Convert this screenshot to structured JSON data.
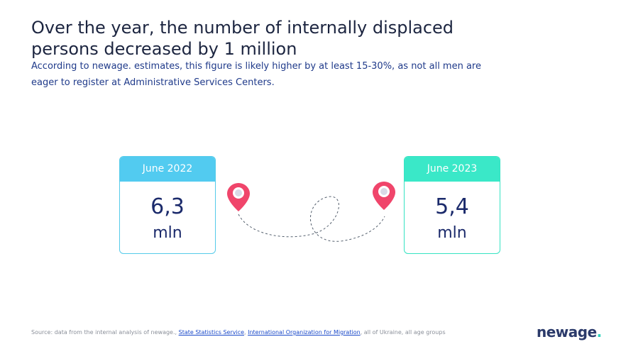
{
  "title": "Over the year, the number of internally displaced persons decreased by 1 million",
  "subtitle": "According to newage. estimates, this figure is likely higher by at least 15-30%, as not all men are eager to register at Administrative Services Centers.",
  "cards": [
    {
      "period": "June 2022",
      "value": "6,3",
      "unit": "mln"
    },
    {
      "period": "June 2023",
      "value": "5,4",
      "unit": "mln"
    }
  ],
  "source": {
    "prefix": "Source: data from the internal analysis of newage., ",
    "link1": "State Statistics Service",
    "sep": ", ",
    "link2": "International Organization for Migration",
    "suffix": ", all of Ukraine, all age groups"
  },
  "logo": {
    "text": "newage",
    "dot": "."
  },
  "colors": {
    "card_left_accent": "#52cbf0",
    "card_right_accent": "#3ae8c8",
    "pin": "#f0456b",
    "value_text": "#1b2a6b"
  },
  "icons": [
    "location-pin-icon",
    "location-pin-icon"
  ]
}
